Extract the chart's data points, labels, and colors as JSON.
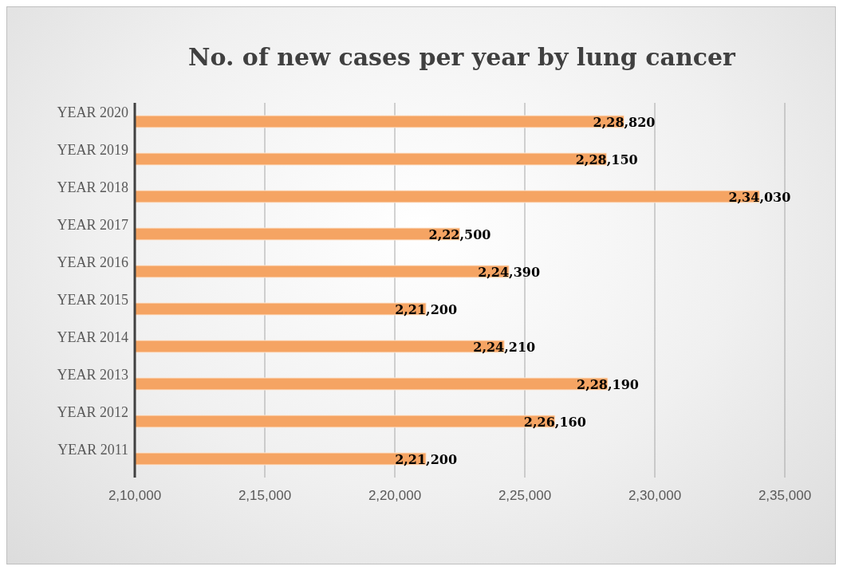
{
  "chart_data": {
    "type": "bar",
    "orientation": "horizontal",
    "title": "No. of new cases per year by lung cancer",
    "categories": [
      "YEAR 2020",
      "YEAR 2019",
      "YEAR 2018",
      "YEAR 2017",
      "YEAR 2016",
      "YEAR 2015",
      "YEAR 2014",
      "YEAR 2013",
      "YEAR 2012",
      "YEAR 2011"
    ],
    "values": [
      228820,
      228150,
      234030,
      222500,
      224390,
      221200,
      224210,
      228190,
      226160,
      221200
    ],
    "value_labels": [
      "2,28,820",
      "2,28,150",
      "2,34,030",
      "2,22,500",
      "2,24,390",
      "2,21,200",
      "2,24,210",
      "2,28,190",
      "2,26,160",
      "2,21,200"
    ],
    "color": "#f5a463",
    "xlim": [
      210000,
      235000
    ],
    "xticks": [
      {
        "value": 210000,
        "label": "2,10,000"
      },
      {
        "value": 215000,
        "label": "2,15,000"
      },
      {
        "value": 220000,
        "label": "2,20,000"
      },
      {
        "value": 225000,
        "label": "2,25,000"
      },
      {
        "value": 230000,
        "label": "2,30,000"
      },
      {
        "value": 235000,
        "label": "2,35,000"
      }
    ],
    "grid": "x",
    "legend": false
  }
}
